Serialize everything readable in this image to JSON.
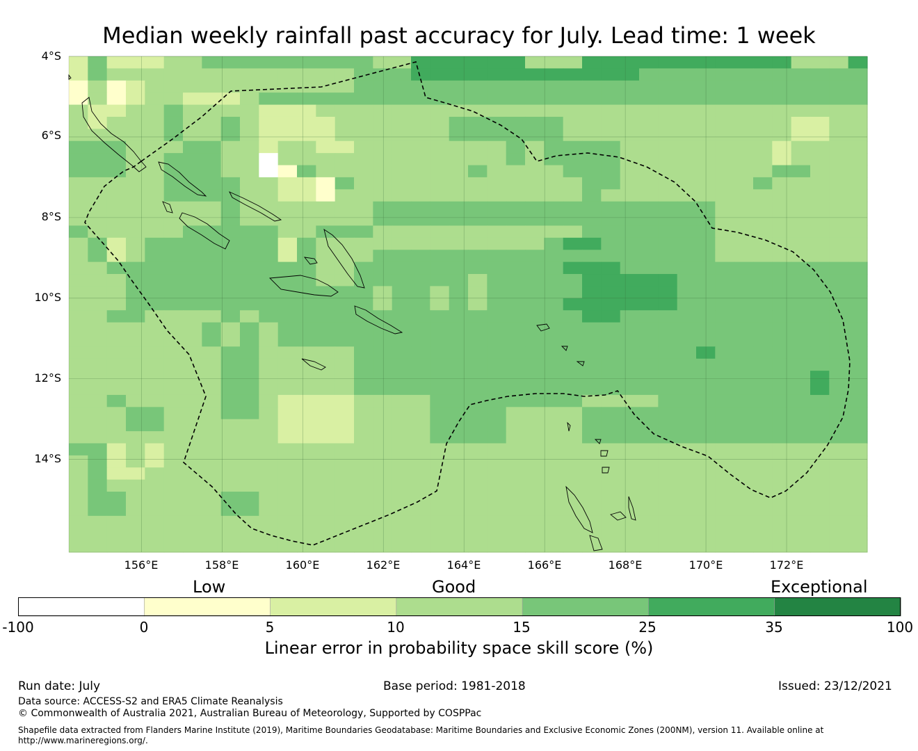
{
  "title": "Median weekly rainfall past accuracy for July. Lead time: 1 week",
  "map": {
    "lat_labels": [
      "4°S",
      "6°S",
      "8°S",
      "10°S",
      "12°S",
      "14°S"
    ],
    "lon_labels": [
      "156°E",
      "158°E",
      "160°E",
      "162°E",
      "164°E",
      "166°E",
      "168°E",
      "170°E",
      "172°E"
    ],
    "extent": {
      "lon_min": 154.2,
      "lon_max": 174.0,
      "lat_north": -4.0,
      "lat_south": -16.3
    },
    "grid_cell_deg": 0.833,
    "skill_class_colors": [
      "#ffffff",
      "#ffffcc",
      "#d9f0a3",
      "#addd8e",
      "#78c679",
      "#41ab5d",
      "#238443"
    ],
    "cell_classes_rows": [
      "242223344444444433555555333555555555553335",
      "243333333333333444555555555555444444444444",
      "131233333333333444444444444444444444444444",
      "131233222344444444444444444444444444444444",
      "322334333322233333333333333333333333333333",
      "323334334322223333334444443333333333332233",
      "333334334322223333334444443333333333332233",
      "444333443323322333333334344443333333323333",
      "444334443303333333333334344443333333323333",
      "444334443301433333333433334443333333344333",
      "333334444332214333333333333443333333433333",
      "333334444332213333333333333433333333333333",
      "333333334333333344444444444444444433333333",
      "333333334333333344444444444444444433333333",
      "433333444443344433333333333444444433333333",
      "342344444442433333333333345544444433333333",
      "342344444442433344444444444444444433333333",
      "334444444444433444444444445554444444444444",
      "333444444444433444444344444555554444444444",
      "333444444444444434434344444555554444444444",
      "333444444444444434434344445555554444444444",
      "334433334344444444444444444554444444444444",
      "333333343434444444444444444444444444444444",
      "333333343434444444444444444444444444444444",
      "333333334433333444444444444444444544444444",
      "333333334433333444444444444444444444444444",
      "333333334433333444444444444444444444444544",
      "333333334433333444444444444444444444444544",
      "334333334432222333344444444333344444444444",
      "333443334432222333344443333444444444444444",
      "333443333332222333344443333444444444444444",
      "333333333332222333344443333444444444444444",
      "442323333333333333333333333333333333333333",
      "342323333333333333333333333333333333333333",
      "342233333333333333333333333333333333333333",
      "343333333333333333333333333333333333333333",
      "344333334433333333333333333333333333333333",
      "344333334433333333333333333333333333333333",
      "333333333333333333333333333333333333333333",
      "333333333333333333333333333333333333333333",
      "333333333333333333333333333333333333333333"
    ]
  },
  "colorbar": {
    "categories": [
      "Low",
      "Good",
      "Exceptional"
    ],
    "ticks": [
      "-100",
      "0",
      "5",
      "10",
      "15",
      "25",
      "35",
      "100"
    ],
    "colors": [
      "#ffffff",
      "#ffffcc",
      "#d9f0a3",
      "#addd8e",
      "#78c679",
      "#41ab5d",
      "#238443"
    ],
    "title": "Linear error in probability space skill score (%)"
  },
  "footer": {
    "run_date": "Run date: July",
    "base_period": "Base period: 1981-2018",
    "issued": "Issued: 23/12/2021",
    "data_source": "Data source: ACCESS-S2 and ERA5 Climate Reanalysis",
    "copyright": "© Commonwealth of Australia 2021, Australian Bureau of Meteorology, Supported by COSPPac",
    "shapefile_line1": "Shapefile data extracted from Flanders Marine Institute (2019), Maritime Boundaries Geodatabase: Maritime Boundaries and Exclusive Economic Zones (200NM), version 11. Available online at",
    "shapefile_line2": "http://www.marineregions.org/."
  }
}
